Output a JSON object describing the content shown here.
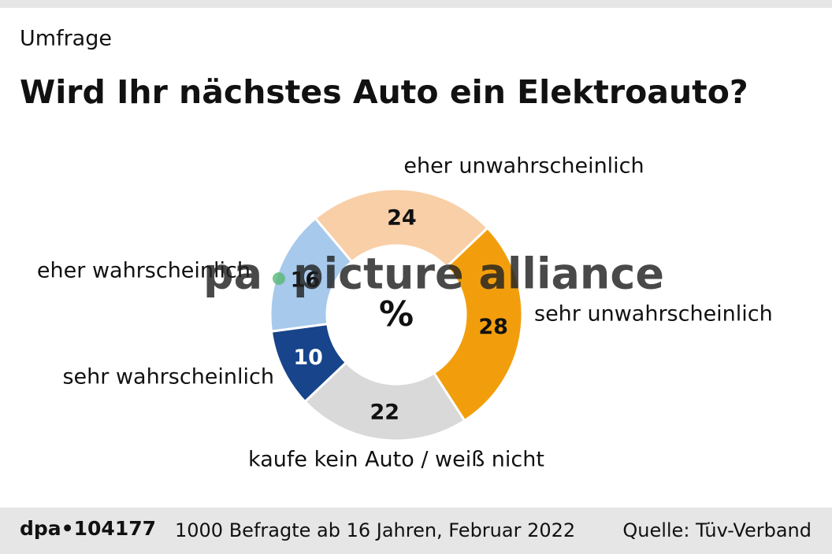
{
  "chart_data": {
    "type": "donut",
    "kicker": "Umfrage",
    "title": "Wird Ihr nächstes Auto ein Elektroauto?",
    "center_label": "%",
    "categories": [
      "eher unwahrscheinlich",
      "sehr unwahrscheinlich",
      "kaufe kein Auto / weiß nicht",
      "sehr wahrscheinlich",
      "eher wahrscheinlich"
    ],
    "values": [
      24,
      28,
      22,
      10,
      16
    ],
    "colors": [
      "#f8cfa6",
      "#f29e0c",
      "#d9d9d9",
      "#17448a",
      "#a7c9ec"
    ],
    "footer": {
      "id": "dpa•104177",
      "note": "1000 Befragte ab 16 Jahren, Februar 2022",
      "source": "Quelle: Tüv-Verband"
    },
    "watermark": {
      "left": "pa",
      "right": "picture alliance"
    }
  }
}
